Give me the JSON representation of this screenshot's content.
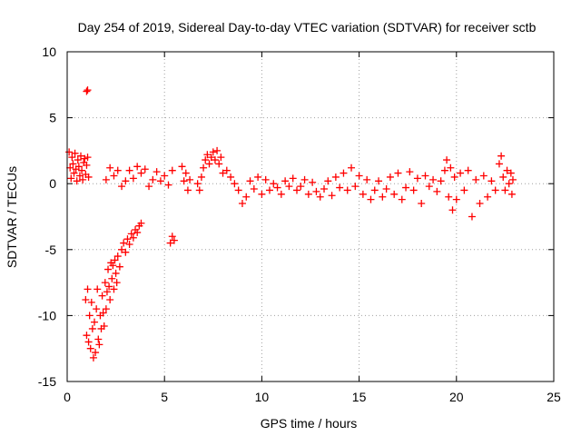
{
  "chart_data": {
    "type": "scatter",
    "title": "Day 254 of 2019, Sidereal Day-to-day VTEC variation (SDTVAR) for receiver sctb",
    "xlabel": "GPS time / hours",
    "ylabel": "SDTVAR / TECUs",
    "xlim": [
      0,
      25
    ],
    "ylim": [
      -15,
      10
    ],
    "grid": true,
    "marker": "+",
    "x_ticks": [
      0,
      5,
      10,
      15,
      20,
      25
    ],
    "y_ticks": [
      -15,
      -10,
      -5,
      0,
      5,
      10
    ],
    "series": [
      {
        "name": "SDTVAR",
        "color": "#ff0000",
        "points": [
          [
            0.1,
            2.4
          ],
          [
            0.15,
            1.2
          ],
          [
            0.2,
            0.4
          ],
          [
            0.25,
            2.0
          ],
          [
            0.3,
            1.5
          ],
          [
            0.35,
            0.8
          ],
          [
            0.4,
            2.3
          ],
          [
            0.45,
            1.1
          ],
          [
            0.5,
            0.2
          ],
          [
            0.55,
            1.8
          ],
          [
            0.6,
            1.3
          ],
          [
            0.65,
            0.6
          ],
          [
            0.7,
            2.1
          ],
          [
            0.75,
            1.0
          ],
          [
            0.8,
            0.3
          ],
          [
            0.85,
            1.6
          ],
          [
            0.9,
            1.9
          ],
          [
            0.95,
            0.7
          ],
          [
            1.0,
            1.4
          ],
          [
            1.05,
            2.0
          ],
          [
            1.1,
            0.5
          ],
          [
            1.0,
            7.0
          ],
          [
            1.05,
            7.1
          ],
          [
            0.95,
            -8.8
          ],
          [
            1.0,
            -11.5
          ],
          [
            1.05,
            -8.0
          ],
          [
            1.1,
            -12.0
          ],
          [
            1.15,
            -10.0
          ],
          [
            1.2,
            -12.5
          ],
          [
            1.25,
            -9.0
          ],
          [
            1.3,
            -11.0
          ],
          [
            1.35,
            -13.2
          ],
          [
            1.4,
            -10.5
          ],
          [
            1.45,
            -12.8
          ],
          [
            1.5,
            -9.5
          ],
          [
            1.55,
            -8.0
          ],
          [
            1.6,
            -11.8
          ],
          [
            1.65,
            -12.2
          ],
          [
            1.7,
            -10.0
          ],
          [
            1.75,
            -11.0
          ],
          [
            1.8,
            -8.5
          ],
          [
            1.85,
            -9.8
          ],
          [
            1.9,
            -10.8
          ],
          [
            1.95,
            -7.5
          ],
          [
            2.0,
            -9.5
          ],
          [
            2.05,
            -8.2
          ],
          [
            2.1,
            -6.5
          ],
          [
            2.15,
            -7.8
          ],
          [
            2.2,
            -8.8
          ],
          [
            2.25,
            -6.0
          ],
          [
            2.3,
            -7.2
          ],
          [
            2.35,
            -6.2
          ],
          [
            2.4,
            -8.0
          ],
          [
            2.45,
            -5.8
          ],
          [
            2.5,
            -6.8
          ],
          [
            2.55,
            -7.5
          ],
          [
            2.6,
            -5.5
          ],
          [
            2.7,
            -6.3
          ],
          [
            2.8,
            -5.0
          ],
          [
            2.9,
            -4.5
          ],
          [
            3.0,
            -5.2
          ],
          [
            3.1,
            -4.2
          ],
          [
            3.2,
            -4.6
          ],
          [
            3.3,
            -3.8
          ],
          [
            3.4,
            -4.1
          ],
          [
            3.5,
            -3.5
          ],
          [
            3.6,
            -3.7
          ],
          [
            3.7,
            -3.2
          ],
          [
            3.8,
            -3.0
          ],
          [
            2.0,
            0.3
          ],
          [
            2.2,
            1.2
          ],
          [
            2.4,
            0.6
          ],
          [
            2.6,
            1.0
          ],
          [
            2.8,
            -0.2
          ],
          [
            3.0,
            0.2
          ],
          [
            3.2,
            1.0
          ],
          [
            3.4,
            0.4
          ],
          [
            3.6,
            1.3
          ],
          [
            3.8,
            0.8
          ],
          [
            4.0,
            1.1
          ],
          [
            4.2,
            -0.2
          ],
          [
            4.4,
            0.3
          ],
          [
            4.6,
            0.9
          ],
          [
            4.8,
            0.2
          ],
          [
            5.0,
            0.6
          ],
          [
            5.2,
            -0.1
          ],
          [
            5.4,
            1.0
          ],
          [
            5.3,
            -4.5
          ],
          [
            5.4,
            -4.0
          ],
          [
            5.5,
            -4.3
          ],
          [
            5.9,
            1.3
          ],
          [
            6.0,
            0.2
          ],
          [
            6.1,
            0.8
          ],
          [
            6.2,
            -0.5
          ],
          [
            6.3,
            0.3
          ],
          [
            6.7,
            0.0
          ],
          [
            6.8,
            -0.5
          ],
          [
            6.9,
            0.5
          ],
          [
            7.0,
            1.2
          ],
          [
            7.1,
            1.8
          ],
          [
            7.2,
            2.2
          ],
          [
            7.3,
            1.5
          ],
          [
            7.4,
            2.0
          ],
          [
            7.5,
            2.4
          ],
          [
            7.6,
            1.8
          ],
          [
            7.7,
            2.5
          ],
          [
            7.8,
            1.5
          ],
          [
            7.9,
            2.0
          ],
          [
            8.0,
            0.8
          ],
          [
            8.2,
            1.0
          ],
          [
            8.4,
            0.5
          ],
          [
            8.6,
            0.0
          ],
          [
            8.8,
            -0.5
          ],
          [
            9.0,
            -1.5
          ],
          [
            9.2,
            -1.0
          ],
          [
            9.4,
            0.2
          ],
          [
            9.6,
            -0.4
          ],
          [
            9.8,
            0.5
          ],
          [
            10.0,
            -0.8
          ],
          [
            10.2,
            0.3
          ],
          [
            10.4,
            -0.5
          ],
          [
            10.6,
            0.0
          ],
          [
            10.8,
            -0.3
          ],
          [
            11.0,
            -0.8
          ],
          [
            11.2,
            0.2
          ],
          [
            11.4,
            -0.2
          ],
          [
            11.6,
            0.4
          ],
          [
            11.8,
            -0.5
          ],
          [
            12.0,
            -0.2
          ],
          [
            12.2,
            0.3
          ],
          [
            12.4,
            -0.8
          ],
          [
            12.6,
            0.1
          ],
          [
            12.8,
            -0.6
          ],
          [
            13.0,
            -1.0
          ],
          [
            13.2,
            -0.4
          ],
          [
            13.4,
            0.2
          ],
          [
            13.6,
            -0.9
          ],
          [
            13.8,
            0.5
          ],
          [
            14.0,
            -0.3
          ],
          [
            14.2,
            0.8
          ],
          [
            14.4,
            -0.5
          ],
          [
            14.6,
            1.2
          ],
          [
            14.8,
            -0.2
          ],
          [
            15.0,
            0.6
          ],
          [
            15.2,
            -0.8
          ],
          [
            15.4,
            0.3
          ],
          [
            15.6,
            -1.2
          ],
          [
            15.8,
            -0.5
          ],
          [
            16.0,
            0.2
          ],
          [
            16.2,
            -1.0
          ],
          [
            16.4,
            -0.4
          ],
          [
            16.6,
            0.5
          ],
          [
            16.8,
            -0.8
          ],
          [
            17.0,
            0.8
          ],
          [
            17.2,
            -1.2
          ],
          [
            17.4,
            -0.3
          ],
          [
            17.6,
            0.9
          ],
          [
            17.8,
            -0.5
          ],
          [
            18.0,
            0.4
          ],
          [
            18.2,
            -1.5
          ],
          [
            18.4,
            0.6
          ],
          [
            18.6,
            -0.2
          ],
          [
            18.8,
            0.3
          ],
          [
            19.0,
            -0.6
          ],
          [
            19.2,
            0.2
          ],
          [
            19.4,
            1.0
          ],
          [
            19.5,
            1.8
          ],
          [
            19.6,
            -1.0
          ],
          [
            19.7,
            1.2
          ],
          [
            19.8,
            -2.0
          ],
          [
            19.9,
            0.5
          ],
          [
            20.0,
            -1.2
          ],
          [
            20.2,
            0.8
          ],
          [
            20.4,
            -0.5
          ],
          [
            20.6,
            1.0
          ],
          [
            20.8,
            -2.5
          ],
          [
            21.0,
            0.3
          ],
          [
            21.2,
            -1.5
          ],
          [
            21.4,
            0.6
          ],
          [
            21.6,
            -1.0
          ],
          [
            21.8,
            0.2
          ],
          [
            22.0,
            -0.5
          ],
          [
            22.2,
            1.5
          ],
          [
            22.3,
            2.1
          ],
          [
            22.4,
            0.5
          ],
          [
            22.5,
            -0.5
          ],
          [
            22.6,
            1.0
          ],
          [
            22.7,
            0.0
          ],
          [
            22.8,
            0.8
          ],
          [
            22.85,
            -0.8
          ],
          [
            22.9,
            0.3
          ]
        ]
      }
    ]
  }
}
